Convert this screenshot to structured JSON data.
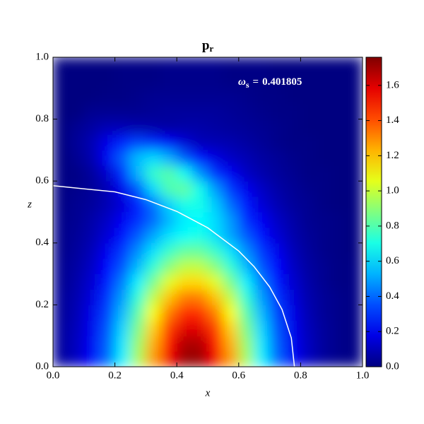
{
  "chart_data": {
    "type": "heatmap",
    "title": {
      "text": "p",
      "sub": "r"
    },
    "annotation": {
      "symbol": "ω",
      "sub": "s",
      "equals": "=",
      "value": 0.401805
    },
    "x_label": "x",
    "y_label": "z",
    "colormap": "jet",
    "x": [
      0.025,
      0.075,
      0.125,
      0.175,
      0.225,
      0.275,
      0.325,
      0.375,
      0.425,
      0.475,
      0.525,
      0.575,
      0.625,
      0.675,
      0.725,
      0.775,
      0.825,
      0.875,
      0.925,
      0.975
    ],
    "y": [
      0.025,
      0.075,
      0.125,
      0.175,
      0.225,
      0.275,
      0.325,
      0.375,
      0.425,
      0.475,
      0.525,
      0.575,
      0.625,
      0.675,
      0.725,
      0.775,
      0.825,
      0.875,
      0.925,
      0.975
    ],
    "values": [
      [
        0.05,
        0.11,
        0.21,
        0.39,
        0.64,
        0.95,
        1.28,
        1.56,
        1.72,
        1.72,
        1.56,
        1.28,
        0.95,
        0.64,
        0.39,
        0.21,
        0.11,
        0.05,
        0.02,
        0.01
      ],
      [
        0.05,
        0.11,
        0.2,
        0.38,
        0.62,
        0.92,
        1.24,
        1.51,
        1.68,
        1.68,
        1.51,
        1.24,
        0.92,
        0.62,
        0.38,
        0.2,
        0.11,
        0.05,
        0.02,
        0.01
      ],
      [
        0.05,
        0.1,
        0.19,
        0.36,
        0.59,
        0.87,
        1.18,
        1.44,
        1.59,
        1.59,
        1.44,
        1.18,
        0.87,
        0.59,
        0.36,
        0.19,
        0.1,
        0.05,
        0.02,
        0.01
      ],
      [
        0.04,
        0.09,
        0.18,
        0.33,
        0.54,
        0.81,
        1.09,
        1.33,
        1.47,
        1.47,
        1.33,
        1.09,
        0.81,
        0.54,
        0.33,
        0.18,
        0.09,
        0.04,
        0.02,
        0.01
      ],
      [
        0.04,
        0.08,
        0.16,
        0.3,
        0.49,
        0.73,
        0.99,
        1.2,
        1.33,
        1.33,
        1.2,
        0.99,
        0.73,
        0.49,
        0.3,
        0.16,
        0.08,
        0.04,
        0.02,
        0.01
      ],
      [
        0.03,
        0.07,
        0.14,
        0.26,
        0.43,
        0.64,
        0.86,
        1.05,
        1.16,
        1.16,
        1.05,
        0.86,
        0.64,
        0.43,
        0.26,
        0.14,
        0.07,
        0.03,
        0.01,
        0.01
      ],
      [
        0.03,
        0.06,
        0.12,
        0.22,
        0.36,
        0.54,
        0.73,
        0.89,
        0.99,
        0.99,
        0.89,
        0.73,
        0.54,
        0.36,
        0.22,
        0.12,
        0.06,
        0.03,
        0.01,
        0.01
      ],
      [
        0.02,
        0.05,
        0.1,
        0.19,
        0.31,
        0.46,
        0.61,
        0.75,
        0.83,
        0.83,
        0.75,
        0.61,
        0.46,
        0.31,
        0.19,
        0.1,
        0.05,
        0.02,
        0.01,
        0
      ],
      [
        0.02,
        0.04,
        0.08,
        0.15,
        0.25,
        0.37,
        0.5,
        0.61,
        0.67,
        0.7,
        0.61,
        0.5,
        0.37,
        0.25,
        0.15,
        0.08,
        0.04,
        0.02,
        0.01,
        0
      ],
      [
        0.02,
        0.03,
        0.07,
        0.12,
        0.2,
        0.29,
        0.4,
        0.53,
        0.63,
        0.66,
        0.6,
        0.48,
        0.29,
        0.2,
        0.12,
        0.07,
        0.03,
        0.02,
        0.01,
        0
      ],
      [
        0.01,
        0.03,
        0.05,
        0.09,
        0.15,
        0.27,
        0.41,
        0.58,
        0.7,
        0.7,
        0.57,
        0.4,
        0.26,
        0.15,
        0.09,
        0.05,
        0.03,
        0.01,
        0,
        0
      ],
      [
        0.01,
        0.02,
        0.04,
        0.09,
        0.19,
        0.36,
        0.6,
        0.79,
        0.83,
        0.69,
        0.48,
        0.31,
        0.19,
        0.12,
        0.07,
        0.04,
        0.02,
        0.01,
        0,
        0
      ],
      [
        0.01,
        0.01,
        0.05,
        0.13,
        0.29,
        0.53,
        0.75,
        0.81,
        0.68,
        0.47,
        0.3,
        0.2,
        0.12,
        0.08,
        0.05,
        0.03,
        0.01,
        0.01,
        0,
        0
      ],
      [
        0,
        0.03,
        0.08,
        0.2,
        0.38,
        0.55,
        0.6,
        0.52,
        0.37,
        0.25,
        0.17,
        0.12,
        0.09,
        0.06,
        0.04,
        0.02,
        0.01,
        0,
        0,
        0
      ],
      [
        0,
        0.04,
        0.09,
        0.18,
        0.28,
        0.33,
        0.29,
        0.21,
        0.15,
        0.1,
        0.09,
        0.08,
        0.06,
        0.04,
        0.02,
        0.01,
        0.01,
        0,
        0,
        0
      ],
      [
        0,
        0.03,
        0.06,
        0.09,
        0.09,
        0.08,
        0.07,
        0.06,
        0.07,
        0.07,
        0.06,
        0.05,
        0.04,
        0.03,
        0.02,
        0.01,
        0,
        0,
        0,
        0
      ],
      [
        0,
        0,
        0.03,
        0.03,
        0.03,
        0.03,
        0.04,
        0.05,
        0.05,
        0.05,
        0.05,
        0.04,
        0.03,
        0.02,
        0.01,
        0.01,
        0,
        0,
        0,
        0
      ],
      [
        0,
        0,
        0,
        0.01,
        0.01,
        0.02,
        0.03,
        0.03,
        0.03,
        0.03,
        0.03,
        0.03,
        0.02,
        0.01,
        0.01,
        0,
        0,
        0,
        0,
        0
      ],
      [
        0,
        0,
        0,
        0,
        0.01,
        0.01,
        0.01,
        0.02,
        0.02,
        0.02,
        0.02,
        0.01,
        0.01,
        0.01,
        0,
        0,
        0,
        0,
        0,
        0
      ],
      [
        0,
        0,
        0,
        0,
        0.01,
        0.01,
        0.01,
        0.02,
        0.02,
        0.02,
        0.02,
        0.01,
        0.01,
        0.01,
        0,
        0,
        0,
        0,
        0,
        0
      ]
    ],
    "xlim": [
      0,
      1
    ],
    "ylim": [
      0,
      1
    ],
    "xticks": [
      {
        "value": 0,
        "label": "0.0"
      },
      {
        "value": 0.2,
        "label": "0.2"
      },
      {
        "value": 0.4,
        "label": "0.4"
      },
      {
        "value": 0.6,
        "label": "0.6"
      },
      {
        "value": 0.8,
        "label": "0.8"
      },
      {
        "value": 1,
        "label": "1.0"
      }
    ],
    "yticks": [
      {
        "value": 0,
        "label": "0.0"
      },
      {
        "value": 0.2,
        "label": "0.2"
      },
      {
        "value": 0.4,
        "label": "0.4"
      },
      {
        "value": 0.6,
        "label": "0.6"
      },
      {
        "value": 0.8,
        "label": "0.8"
      },
      {
        "value": 1,
        "label": "1.0"
      }
    ],
    "colorbar": {
      "lim": [
        0,
        1.76
      ],
      "ticks": [
        {
          "value": 0,
          "label": "0.0"
        },
        {
          "value": 0.2,
          "label": "0.2"
        },
        {
          "value": 0.4,
          "label": "0.4"
        },
        {
          "value": 0.6,
          "label": "0.6"
        },
        {
          "value": 0.8,
          "label": "0.8"
        },
        {
          "value": 1,
          "label": "1.0"
        },
        {
          "value": 1.2,
          "label": "1.2"
        },
        {
          "value": 1.4,
          "label": "1.4"
        },
        {
          "value": 1.6,
          "label": "1.6"
        }
      ]
    },
    "curve": {
      "color": "#ffffff",
      "x": [
        0,
        0.2,
        0.3,
        0.4,
        0.5,
        0.6,
        0.65,
        0.7,
        0.74,
        0.77,
        0.78
      ],
      "y": [
        0.585,
        0.565,
        0.54,
        0.502,
        0.449,
        0.374,
        0.323,
        0.258,
        0.185,
        0.093,
        0
      ]
    }
  }
}
